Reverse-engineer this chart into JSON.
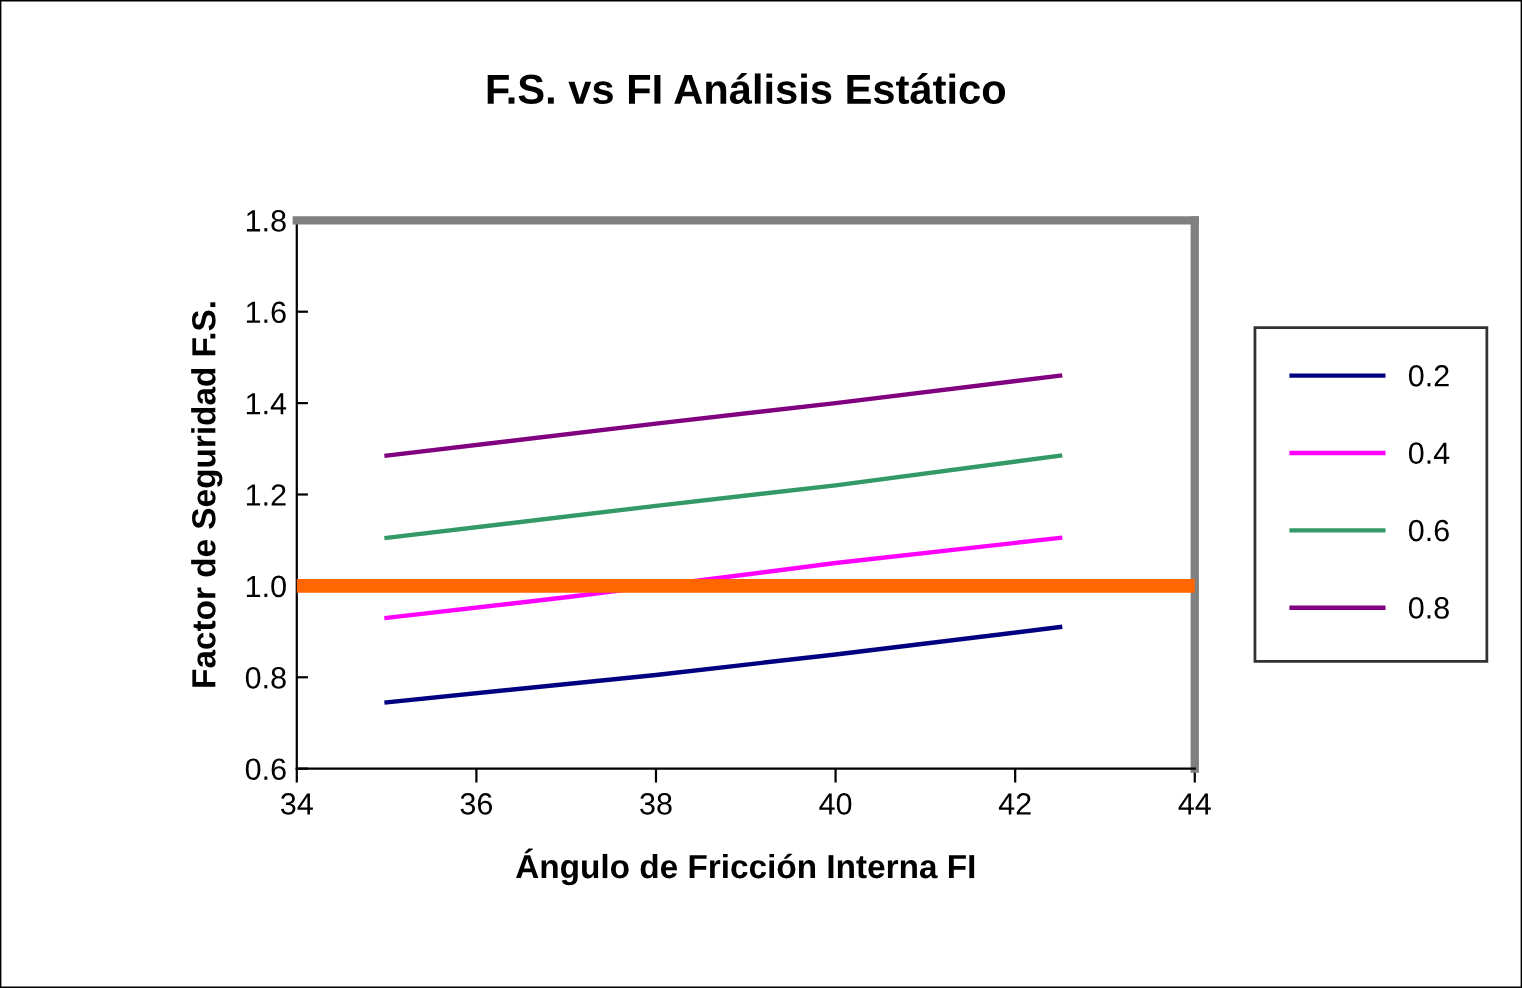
{
  "chart_data": {
    "type": "line",
    "title": "F.S. vs FI Análisis Estático",
    "xlabel": "Ángulo de Fricción Interna FI",
    "ylabel": "Factor de Seguridad F.S.",
    "x": [
      35,
      38,
      40,
      42.5
    ],
    "series": [
      {
        "name": "0.2",
        "color": "#000080",
        "values": [
          0.745,
          0.805,
          0.85,
          0.91
        ]
      },
      {
        "name": "0.4",
        "color": "#ff00ff",
        "x": [
          35,
          37,
          40,
          42.5
        ],
        "values": [
          0.93,
          0.975,
          1.05,
          1.105
        ]
      },
      {
        "name": "0.6",
        "color": "#339966",
        "values": [
          1.105,
          1.175,
          1.22,
          1.285
        ]
      },
      {
        "name": "0.8",
        "color": "#800080",
        "values": [
          1.285,
          1.355,
          1.4,
          1.46
        ]
      }
    ],
    "ref_lines": [
      {
        "axis": "y",
        "value": 1.0,
        "color": "#ff6600"
      }
    ],
    "xlim": [
      34,
      44
    ],
    "xticks": [
      34,
      36,
      38,
      40,
      42,
      44
    ],
    "ylim": [
      0.6,
      1.8
    ],
    "yticks": [
      0.6,
      0.8,
      {
        "value": 1,
        "label": "1.0"
      },
      1.2,
      1.4,
      1.6,
      1.8
    ],
    "legend": "right",
    "grid": false,
    "marker": "none",
    "line_style": "solid"
  }
}
